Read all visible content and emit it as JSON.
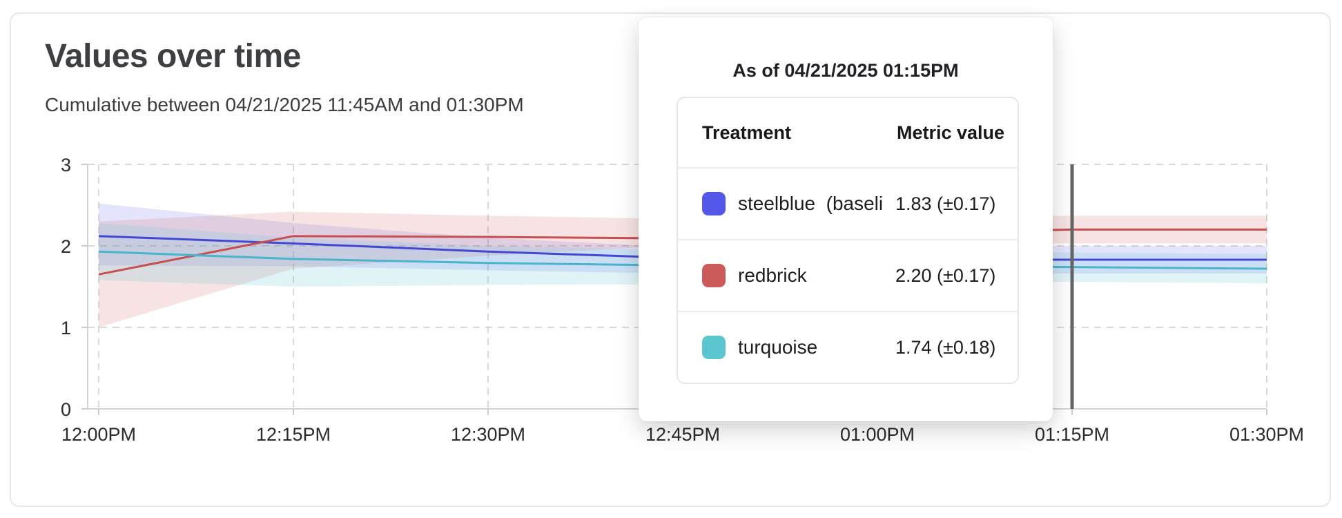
{
  "page": {
    "title": "Values over time",
    "subtitle": "Cumulative between 04/21/2025 11:45AM and 01:30PM"
  },
  "tooltip": {
    "title": "As of 04/21/2025 01:15PM",
    "col_treatment": "Treatment",
    "col_metric": "Metric value",
    "rows": [
      {
        "label": "steelblue  (baseli",
        "value": "1.83 (±0.17)",
        "color": "#5458e8"
      },
      {
        "label": "redbrick",
        "value": "2.20 (±0.17)",
        "color": "#cd5a5a"
      },
      {
        "label": "turquoise",
        "value": "1.74 (±0.18)",
        "color": "#5cc6d0"
      }
    ]
  },
  "chart_data": {
    "type": "line",
    "title": "Values over time",
    "subtitle": "Cumulative between 04/21/2025 11:45AM and 01:30PM",
    "xlabel": "",
    "ylabel": "",
    "x_ticks": [
      "12:00PM",
      "12:15PM",
      "12:30PM",
      "12:45PM",
      "01:00PM",
      "01:15PM",
      "01:30PM"
    ],
    "y_ticks": [
      0,
      1,
      2,
      3
    ],
    "ylim": [
      0,
      3
    ],
    "grid": true,
    "legend_position": "none",
    "hover_index": 5,
    "hover_time": "01:15PM",
    "colors": {
      "grid": "#d8d9db",
      "axis": "#d2d3d5",
      "tick": "#cbccce",
      "tick_label": "#2a2b2e",
      "hover_line": "#646567"
    },
    "series": [
      {
        "name": "steelblue (baseline)",
        "color": "#4348d4",
        "band_color": "rgba(93,98,235,0.17)",
        "values": [
          2.12,
          2.03,
          1.93,
          1.85,
          1.84,
          1.83,
          1.83
        ],
        "upper": [
          2.52,
          2.28,
          2.1,
          1.98,
          1.99,
          2.0,
          2.0
        ],
        "lower": [
          1.76,
          1.75,
          1.7,
          1.66,
          1.66,
          1.66,
          1.66
        ]
      },
      {
        "name": "redbrick",
        "color": "#c64f4f",
        "band_color": "rgba(205,90,90,0.17)",
        "values": [
          1.65,
          2.12,
          2.11,
          2.09,
          2.15,
          2.2,
          2.2
        ],
        "upper": [
          2.3,
          2.42,
          2.37,
          2.33,
          2.35,
          2.37,
          2.37
        ],
        "lower": [
          1.0,
          1.72,
          1.88,
          2.01,
          2.02,
          2.03,
          2.03
        ]
      },
      {
        "name": "turquoise",
        "color": "#49b4cb",
        "band_color": "rgba(98,200,214,0.20)",
        "values": [
          1.93,
          1.84,
          1.79,
          1.76,
          1.75,
          1.74,
          1.72
        ],
        "upper": [
          2.28,
          2.1,
          2.0,
          1.95,
          1.93,
          1.92,
          1.9
        ],
        "lower": [
          1.58,
          1.5,
          1.52,
          1.53,
          1.54,
          1.56,
          1.54
        ]
      }
    ]
  }
}
